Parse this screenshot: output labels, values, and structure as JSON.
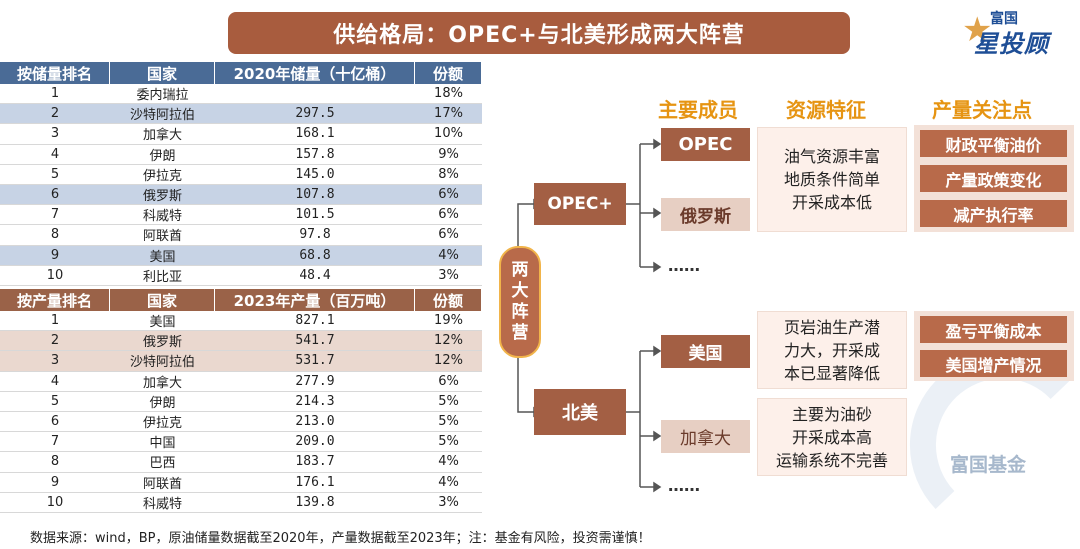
{
  "title": "供给格局：OPEC+与北美形成两大阵营",
  "brand": {
    "line1": "富国",
    "line2": "星投顾"
  },
  "reserves_table": {
    "headers": [
      "按储量排名",
      "国家",
      "2020年储量（十亿桶）",
      "份额"
    ],
    "rows": [
      {
        "rank": "1",
        "country": "委内瑞拉",
        "value": "",
        "share": "18%"
      },
      {
        "rank": "2",
        "country": "沙特阿拉伯",
        "value": "297.5",
        "share": "17%"
      },
      {
        "rank": "3",
        "country": "加拿大",
        "value": "168.1",
        "share": "10%"
      },
      {
        "rank": "4",
        "country": "伊朗",
        "value": "157.8",
        "share": "9%"
      },
      {
        "rank": "5",
        "country": "伊拉克",
        "value": "145.0",
        "share": "8%"
      },
      {
        "rank": "6",
        "country": "俄罗斯",
        "value": "107.8",
        "share": "6%"
      },
      {
        "rank": "7",
        "country": "科威特",
        "value": "101.5",
        "share": "6%"
      },
      {
        "rank": "8",
        "country": "阿联酋",
        "value": "97.8",
        "share": "6%"
      },
      {
        "rank": "9",
        "country": "美国",
        "value": "68.8",
        "share": "4%"
      },
      {
        "rank": "10",
        "country": "利比亚",
        "value": "48.4",
        "share": "3%"
      }
    ]
  },
  "production_table": {
    "headers": [
      "按产量排名",
      "国家",
      "2023年产量（百万吨）",
      "份额"
    ],
    "rows": [
      {
        "rank": "1",
        "country": "美国",
        "value": "827.1",
        "share": "19%"
      },
      {
        "rank": "2",
        "country": "俄罗斯",
        "value": "541.7",
        "share": "12%"
      },
      {
        "rank": "3",
        "country": "沙特阿拉伯",
        "value": "531.7",
        "share": "12%"
      },
      {
        "rank": "4",
        "country": "加拿大",
        "value": "277.9",
        "share": "6%"
      },
      {
        "rank": "5",
        "country": "伊朗",
        "value": "214.3",
        "share": "5%"
      },
      {
        "rank": "6",
        "country": "伊拉克",
        "value": "213.0",
        "share": "5%"
      },
      {
        "rank": "7",
        "country": "中国",
        "value": "209.0",
        "share": "5%"
      },
      {
        "rank": "8",
        "country": "巴西",
        "value": "183.7",
        "share": "4%"
      },
      {
        "rank": "9",
        "country": "阿联酋",
        "value": "176.1",
        "share": "4%"
      },
      {
        "rank": "10",
        "country": "科威特",
        "value": "139.8",
        "share": "3%"
      }
    ]
  },
  "diagram": {
    "col_members": "主要成员",
    "col_features": "资源特征",
    "col_focus": "产量关注点",
    "camps_label": [
      "两",
      "大",
      "阵",
      "营"
    ],
    "opec_plus": "OPEC+",
    "north_america": "北美",
    "opec": "OPEC",
    "russia": "俄罗斯",
    "usa": "美国",
    "canada": "加拿大",
    "ellipsis": "……",
    "opec_features": [
      "油气资源丰富",
      "地质条件简单",
      "开采成本低"
    ],
    "usa_features": [
      "页岩油生产潜",
      "力大，开采成",
      "本已显著降低"
    ],
    "canada_features": [
      "主要为油砂",
      "开采成本高",
      "运输系统不完善"
    ],
    "opec_focus": [
      "财政平衡油价",
      "产量政策变化",
      "减产执行率"
    ],
    "usa_focus": [
      "盈亏平衡成本",
      "美国增产情况"
    ]
  },
  "watermark": "富国基金",
  "footer": "数据来源：wind，BP，原油储量数据截至2020年，产量数据截至2023年；注：基金有风险，投资需谨慎！"
}
